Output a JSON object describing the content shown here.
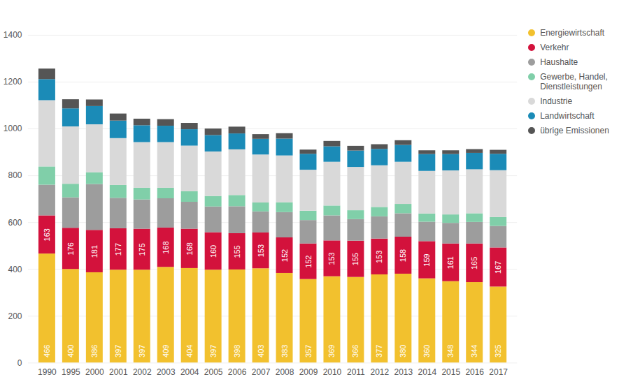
{
  "chart_data": {
    "type": "bar",
    "stacked": true,
    "categories": [
      "1990",
      "1995",
      "2000",
      "2001",
      "2002",
      "2003",
      "2004",
      "2005",
      "2006",
      "2007",
      "2008",
      "2009",
      "2010",
      "2011",
      "2012",
      "2013",
      "2014",
      "2015",
      "2016",
      "2017"
    ],
    "series": [
      {
        "name": "Energiewirtschaft",
        "color": "#f2c12e",
        "data_labels": true,
        "values": [
          466,
          400,
          386,
          397,
          397,
          409,
          404,
          397,
          398,
          403,
          383,
          357,
          369,
          366,
          377,
          380,
          360,
          348,
          344,
          325
        ]
      },
      {
        "name": "Verkehr",
        "color": "#d3123c",
        "data_labels": true,
        "values": [
          163,
          176,
          181,
          177,
          175,
          168,
          168,
          160,
          155,
          153,
          152,
          152,
          153,
          155,
          153,
          158,
          159,
          161,
          165,
          167
        ]
      },
      {
        "name": "Haushalte",
        "color": "#9d9d9d",
        "values": [
          131,
          130,
          196,
          130,
          125,
          125,
          115,
          110,
          115,
          90,
          108,
          100,
          107,
          92,
          95,
          100,
          83,
          88,
          92,
          92
        ]
      },
      {
        "name": "Gewerbe, Handel, Dienstleistungen",
        "color": "#80cfa9",
        "values": [
          78,
          58,
          50,
          55,
          50,
          45,
          45,
          45,
          48,
          38,
          42,
          40,
          42,
          38,
          40,
          40,
          35,
          36,
          37,
          38
        ]
      },
      {
        "name": "Industrie",
        "color": "#d9d9d9",
        "values": [
          283,
          245,
          205,
          200,
          195,
          195,
          195,
          190,
          195,
          205,
          200,
          175,
          187,
          185,
          178,
          180,
          182,
          188,
          188,
          200
        ]
      },
      {
        "name": "Landwirtschaft",
        "color": "#1b8bb7",
        "values": [
          90,
          77,
          78,
          75,
          72,
          70,
          70,
          70,
          68,
          67,
          72,
          68,
          66,
          70,
          70,
          72,
          72,
          70,
          70,
          70
        ]
      },
      {
        "name": "übrige Emissionen",
        "color": "#555555",
        "values": [
          45,
          39,
          28,
          30,
          28,
          28,
          27,
          28,
          29,
          20,
          23,
          18,
          23,
          20,
          20,
          20,
          16,
          16,
          16,
          17
        ]
      }
    ],
    "ylim": [
      0,
      1400
    ],
    "yticks": [
      0,
      200,
      400,
      600,
      800,
      1000,
      1200,
      1400
    ],
    "grid": true,
    "legend": "right"
  }
}
